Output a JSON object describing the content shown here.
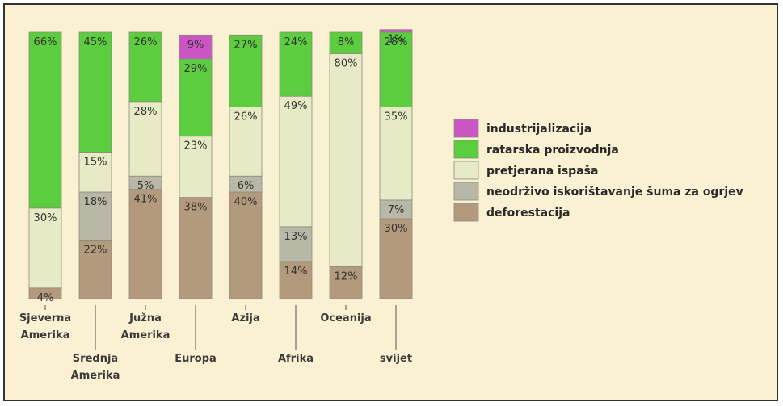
{
  "chart_data": {
    "type": "bar",
    "stacked": true,
    "normalized": true,
    "title": "",
    "xlabel": "",
    "ylabel": "",
    "ylim": [
      0,
      100
    ],
    "grid": false,
    "legend": "right",
    "categories": [
      "Sjeverna Amerika",
      "Srednja Amerika",
      "Južna Amerika",
      "Europa",
      "Azija",
      "Afrika",
      "Oceanija",
      "svijet"
    ],
    "category_lines": [
      [
        "Sjeverna",
        "Amerika"
      ],
      [
        "Srednja",
        "Amerika"
      ],
      [
        "Južna",
        "Amerika"
      ],
      [
        "Europa"
      ],
      [
        "Azija"
      ],
      [
        "Afrika"
      ],
      [
        "Oceanija"
      ],
      [
        "svijet"
      ]
    ],
    "series": [
      {
        "name": "deforestacija",
        "color": "#b49a7c",
        "values": [
          4,
          22,
          41,
          38,
          40,
          14,
          12,
          30
        ]
      },
      {
        "name": "neodrživo iskorištavanje šuma za ogrjev",
        "color": "#b8b8a6",
        "values": [
          0,
          18,
          5,
          0,
          6,
          13,
          0,
          7
        ]
      },
      {
        "name": "pretjerana ispaša",
        "color": "#e7ebc5",
        "values": [
          30,
          15,
          28,
          23,
          26,
          49,
          80,
          35
        ]
      },
      {
        "name": "ratarska proizvodnja",
        "color": "#5ccd3e",
        "values": [
          66,
          45,
          26,
          29,
          27,
          24,
          8,
          28
        ]
      },
      {
        "name": "industrijalizacija",
        "color": "#cc55c4",
        "values": [
          0,
          0,
          0,
          9,
          0,
          0,
          0,
          1
        ]
      }
    ],
    "legend_order": [
      "industrijalizacija",
      "ratarska proizvodnja",
      "pretjerana ispaša",
      "neodrživo iskorištavanje šuma za ogrjev",
      "deforestacija"
    ]
  }
}
